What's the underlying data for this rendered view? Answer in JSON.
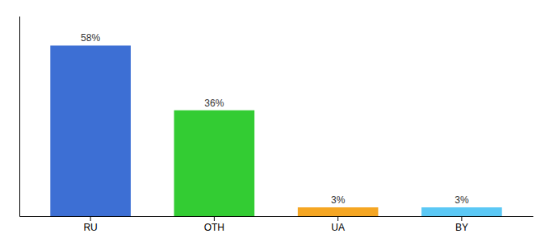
{
  "chart_data": {
    "type": "bar",
    "categories": [
      "RU",
      "OTH",
      "UA",
      "BY"
    ],
    "values": [
      58,
      36,
      3,
      3
    ],
    "value_labels": [
      "58%",
      "36%",
      "3%",
      "3%"
    ],
    "colors": [
      "#3d6fd4",
      "#33cc33",
      "#f5a623",
      "#5bc8f5"
    ],
    "ylim": [
      0,
      68
    ],
    "data_labels": true,
    "tick_labels": "x"
  }
}
